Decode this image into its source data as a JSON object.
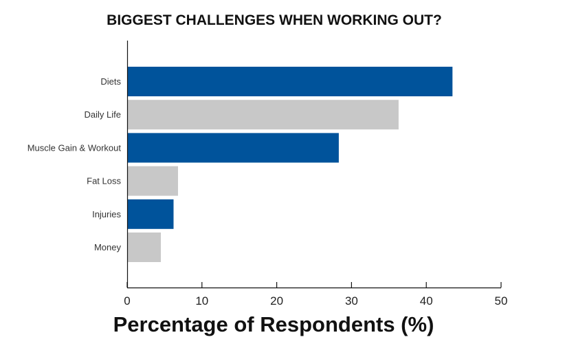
{
  "chart_data": {
    "type": "bar",
    "orientation": "horizontal",
    "title": "BIGGEST CHALLENGES WHEN WORKING OUT?",
    "xlabel": "Percentage of Respondents (%)",
    "ylabel": "",
    "categories": [
      "Diets",
      "Daily Life",
      "Muscle Gain & Workout",
      "Fat Loss",
      "Injuries",
      "Money"
    ],
    "values": [
      43.5,
      36.3,
      28.3,
      6.8,
      6.2,
      4.5
    ],
    "xlim": [
      0,
      50
    ],
    "xticks": [
      0,
      10,
      20,
      30,
      40,
      50
    ],
    "bar_colors": [
      "#00539b",
      "#c8c8c8",
      "#00539b",
      "#c8c8c8",
      "#00539b",
      "#c8c8c8"
    ],
    "grid": false,
    "legend": "none"
  }
}
